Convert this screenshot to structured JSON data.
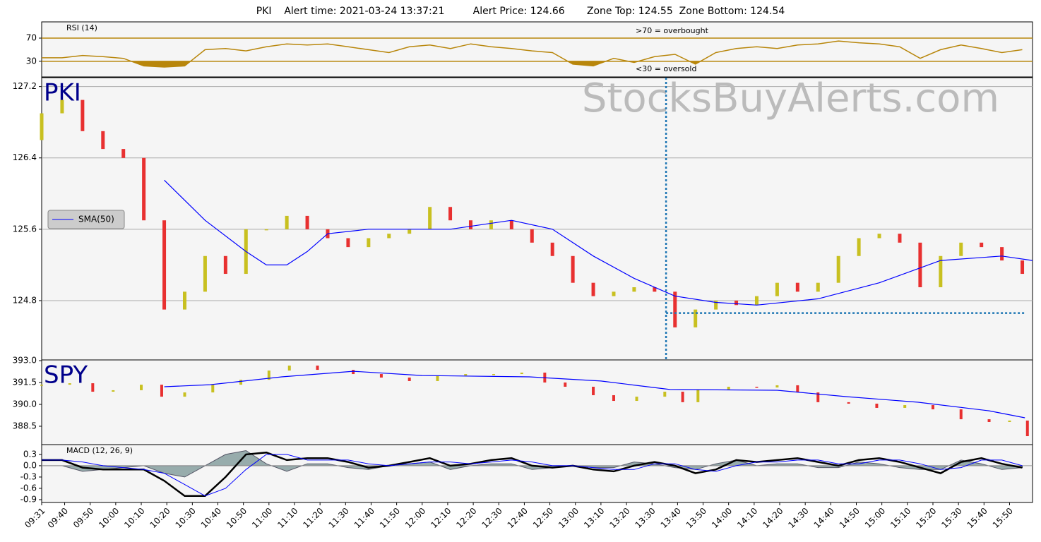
{
  "chart_data": [
    {
      "type": "line",
      "title": "PKI    Alert time: 2021-03-24 13:37:21         Alert Price: 124.66       Zone Top: 124.55  Zone Bottom: 124.54",
      "label": "RSI (14)",
      "annotations": [
        ">70 = overbought",
        "<30 = oversold"
      ],
      "ylim": [
        3,
        98
      ],
      "yticks": [
        30,
        70
      ],
      "level_color": "#b8860b",
      "x": [
        0,
        8,
        16,
        24,
        32,
        40,
        48,
        56,
        64,
        72,
        80,
        88,
        96,
        104,
        112,
        120,
        128,
        136,
        144,
        152,
        160,
        168,
        176,
        184,
        192,
        200,
        208,
        216,
        224,
        232,
        240,
        248,
        256,
        264,
        272,
        280,
        288,
        296,
        304,
        312,
        320,
        328,
        336,
        344,
        352,
        360,
        368,
        376,
        384
      ],
      "series": [
        {
          "color": "#b8860b",
          "values": [
            36,
            36,
            40,
            38,
            35,
            22,
            20,
            22,
            50,
            52,
            48,
            55,
            60,
            58,
            60,
            55,
            50,
            45,
            55,
            58,
            52,
            60,
            55,
            52,
            48,
            45,
            25,
            22,
            35,
            28,
            38,
            42,
            25,
            45,
            52,
            55,
            52,
            58,
            60,
            65,
            62,
            60,
            55,
            35,
            50,
            58,
            52,
            45,
            50
          ]
        }
      ]
    },
    {
      "type": "candlestick",
      "label": "PKI",
      "watermark": "StocksBuyAlerts.com",
      "ylim": [
        124.135,
        127.3
      ],
      "yticks": [
        124.8,
        125.6,
        126.4,
        127.2
      ],
      "grid": true,
      "up_color": "#c8c020",
      "down_color": "#e83030",
      "x": [
        0,
        8,
        16,
        24,
        32,
        40,
        48,
        56,
        64,
        72,
        80,
        88,
        96,
        104,
        112,
        120,
        128,
        136,
        144,
        152,
        160,
        168,
        176,
        184,
        192,
        200,
        208,
        216,
        224,
        232,
        240,
        248,
        256,
        264,
        272,
        280,
        288,
        296,
        304,
        312,
        320,
        328,
        336,
        344,
        352,
        360,
        368,
        376,
        384
      ],
      "open": [
        126.6,
        126.9,
        127.05,
        126.7,
        126.5,
        126.4,
        125.7,
        124.7,
        124.9,
        125.3,
        125.1,
        125.6,
        125.6,
        125.75,
        125.6,
        125.5,
        125.4,
        125.5,
        125.55,
        125.6,
        125.85,
        125.7,
        125.6,
        125.7,
        125.6,
        125.45,
        125.3,
        125.0,
        124.85,
        124.9,
        124.95,
        124.9,
        124.5,
        124.7,
        124.8,
        124.75,
        124.85,
        125.0,
        124.9,
        125.0,
        125.3,
        125.5,
        125.55,
        125.45,
        124.95,
        125.3,
        125.45,
        125.4,
        125.25
      ],
      "close": [
        126.9,
        127.05,
        126.7,
        126.5,
        126.4,
        125.7,
        124.7,
        124.9,
        125.3,
        125.1,
        125.6,
        125.6,
        125.75,
        125.6,
        125.5,
        125.4,
        125.5,
        125.55,
        125.6,
        125.85,
        125.7,
        125.6,
        125.7,
        125.6,
        125.45,
        125.3,
        125.0,
        124.85,
        124.9,
        124.95,
        124.9,
        124.5,
        124.7,
        124.8,
        124.75,
        124.85,
        125.0,
        124.9,
        125.0,
        125.3,
        125.5,
        125.55,
        125.45,
        124.95,
        125.3,
        125.45,
        125.4,
        125.25,
        125.1
      ],
      "sma": {
        "name": "SMA(50)",
        "color": "#0000ff",
        "x": [
          48,
          64,
          80,
          88,
          96,
          104,
          112,
          128,
          160,
          184,
          200,
          216,
          232,
          248,
          264,
          280,
          304,
          328,
          352,
          376,
          388
        ],
        "values": [
          126.15,
          125.7,
          125.35,
          125.2,
          125.2,
          125.35,
          125.55,
          125.6,
          125.6,
          125.7,
          125.6,
          125.3,
          125.05,
          124.85,
          124.78,
          124.75,
          124.82,
          125.0,
          125.25,
          125.3,
          125.25
        ]
      },
      "alert_x": 244.5,
      "zone": 124.66,
      "alert_color": "#1f77b4"
    },
    {
      "type": "candlestick",
      "label": "SPY",
      "ylim": [
        387.24,
        393.05
      ],
      "yticks": [
        {
          "value": 393,
          "label": "393.0"
        },
        391.5,
        {
          "value": 390,
          "label": "390.0"
        },
        388.5
      ],
      "up_color": "#c8c020",
      "down_color": "#e83030",
      "x": [
        0,
        11,
        20,
        28,
        39,
        47,
        56,
        67,
        78,
        89,
        97,
        108,
        122,
        133,
        144,
        155,
        166,
        177,
        188,
        197,
        205,
        216,
        224,
        233,
        244,
        251,
        257,
        269,
        280,
        288,
        296,
        304,
        316,
        327,
        338,
        349,
        360,
        371,
        379,
        386
      ],
      "open": [
        391.3,
        391.35,
        391.45,
        390.87,
        390.97,
        391.35,
        390.53,
        390.82,
        391.35,
        391.69,
        392.32,
        392.66,
        392.37,
        392.08,
        391.84,
        391.6,
        391.98,
        392.08,
        392.08,
        392.18,
        391.5,
        391.21,
        390.63,
        390.24,
        390.53,
        390.87,
        390.15,
        391.02,
        391.21,
        391.16,
        391.31,
        390.82,
        390.15,
        390.05,
        389.76,
        389.95,
        389.66,
        388.98,
        388.79,
        388.89
      ],
      "close": [
        391.35,
        391.45,
        390.87,
        390.97,
        391.35,
        390.53,
        390.82,
        391.35,
        391.69,
        392.32,
        392.66,
        392.37,
        392.08,
        391.84,
        391.6,
        391.98,
        392.08,
        392.08,
        392.18,
        391.5,
        391.21,
        390.63,
        390.24,
        390.53,
        390.87,
        390.15,
        391.02,
        391.21,
        391.16,
        391.31,
        390.82,
        390.15,
        390.05,
        389.76,
        389.95,
        389.66,
        388.98,
        388.79,
        388.89,
        387.82
      ],
      "sma": {
        "color": "#0000ff",
        "x": [
          48,
          66,
          94,
          122,
          149,
          191,
          219,
          246,
          288,
          315,
          343,
          371,
          385
        ],
        "values": [
          391.21,
          391.35,
          391.89,
          392.27,
          391.98,
          391.89,
          391.6,
          391.02,
          390.97,
          390.53,
          390.15,
          389.56,
          389.08
        ]
      }
    },
    {
      "type": "line",
      "label": "MACD (12, 26, 9)",
      "ylim": [
        -0.975,
        0.56
      ],
      "yticks": [
        0.3,
        {
          "value": 0,
          "label": "0.0"
        },
        -0.3,
        -0.6,
        -0.9
      ],
      "xlim": [
        0,
        388
      ],
      "xticks": [
        {
          "value": 0,
          "label": "09:31"
        },
        {
          "value": 9,
          "label": "09:40"
        },
        {
          "value": 19,
          "label": "09:50"
        },
        {
          "value": 29,
          "label": "10:00"
        },
        {
          "value": 39,
          "label": "10:10"
        },
        {
          "value": 49,
          "label": "10:20"
        },
        {
          "value": 59,
          "label": "10:30"
        },
        {
          "value": 69,
          "label": "10:40"
        },
        {
          "value": 79,
          "label": "10:50"
        },
        {
          "value": 89,
          "label": "11:00"
        },
        {
          "value": 99,
          "label": "11:10"
        },
        {
          "value": 109,
          "label": "11:20"
        },
        {
          "value": 119,
          "label": "11:30"
        },
        {
          "value": 129,
          "label": "11:40"
        },
        {
          "value": 139,
          "label": "11:50"
        },
        {
          "value": 149,
          "label": "12:00"
        },
        {
          "value": 159,
          "label": "12:10"
        },
        {
          "value": 169,
          "label": "12:20"
        },
        {
          "value": 179,
          "label": "12:30"
        },
        {
          "value": 189,
          "label": "12:40"
        },
        {
          "value": 199,
          "label": "12:50"
        },
        {
          "value": 209,
          "label": "13:00"
        },
        {
          "value": 219,
          "label": "13:10"
        },
        {
          "value": 229,
          "label": "13:20"
        },
        {
          "value": 239,
          "label": "13:30"
        },
        {
          "value": 249,
          "label": "13:40"
        },
        {
          "value": 259,
          "label": "13:50"
        },
        {
          "value": 269,
          "label": "14:00"
        },
        {
          "value": 279,
          "label": "14:10"
        },
        {
          "value": 289,
          "label": "14:20"
        },
        {
          "value": 299,
          "label": "14:30"
        },
        {
          "value": 309,
          "label": "14:40"
        },
        {
          "value": 319,
          "label": "14:50"
        },
        {
          "value": 329,
          "label": "15:00"
        },
        {
          "value": 339,
          "label": "15:10"
        },
        {
          "value": 349,
          "label": "15:20"
        },
        {
          "value": 359,
          "label": "15:30"
        },
        {
          "value": 369,
          "label": "15:40"
        },
        {
          "value": 379,
          "label": "15:50"
        }
      ],
      "x": [
        0,
        8,
        16,
        24,
        32,
        40,
        48,
        56,
        64,
        72,
        80,
        88,
        96,
        104,
        112,
        120,
        128,
        136,
        144,
        152,
        160,
        168,
        176,
        184,
        192,
        200,
        208,
        216,
        224,
        232,
        240,
        248,
        256,
        264,
        272,
        280,
        288,
        296,
        304,
        312,
        320,
        328,
        336,
        344,
        352,
        360,
        368,
        376,
        384
      ],
      "histogram": {
        "color": "#7f9a9a",
        "values": [
          0,
          0,
          -0.15,
          -0.1,
          -0.05,
          0,
          -0.2,
          -0.3,
          0,
          0.3,
          0.4,
          0.05,
          -0.15,
          0.05,
          0.05,
          -0.05,
          -0.1,
          0,
          0.05,
          0.1,
          -0.1,
          0,
          0.05,
          0.05,
          -0.1,
          -0.05,
          0,
          -0.05,
          -0.05,
          0.1,
          0.05,
          -0.05,
          -0.1,
          0.05,
          0.15,
          0,
          0.05,
          0.05,
          -0.05,
          -0.05,
          0.1,
          0.05,
          -0.05,
          -0.1,
          -0.1,
          0.15,
          0.05,
          -0.1,
          -0.05
        ]
      },
      "series": [
        {
          "color": "#000000",
          "width": 2.5,
          "values": [
            0.15,
            0.15,
            -0.05,
            -0.1,
            -0.1,
            -0.1,
            -0.4,
            -0.8,
            -0.8,
            -0.3,
            0.3,
            0.35,
            0.15,
            0.2,
            0.2,
            0.1,
            -0.05,
            0,
            0.1,
            0.2,
            0.0,
            0.05,
            0.15,
            0.2,
            0.0,
            -0.05,
            0.0,
            -0.1,
            -0.15,
            0.0,
            0.1,
            0.0,
            -0.2,
            -0.1,
            0.15,
            0.1,
            0.15,
            0.2,
            0.1,
            0.0,
            0.15,
            0.2,
            0.1,
            -0.05,
            -0.2,
            0.1,
            0.2,
            0.05,
            -0.05
          ]
        },
        {
          "color": "#0000ff",
          "width": 1,
          "values": [
            0.15,
            0.15,
            0.1,
            0.0,
            -0.05,
            -0.1,
            -0.2,
            -0.5,
            -0.8,
            -0.6,
            -0.1,
            0.3,
            0.3,
            0.15,
            0.15,
            0.15,
            0.05,
            0.0,
            0.05,
            0.1,
            0.1,
            0.05,
            0.1,
            0.15,
            0.1,
            0.0,
            0.0,
            -0.05,
            -0.1,
            -0.1,
            0.05,
            0.05,
            -0.1,
            -0.15,
            0.0,
            0.1,
            0.1,
            0.15,
            0.15,
            0.05,
            0.05,
            0.15,
            0.15,
            0.05,
            -0.1,
            -0.05,
            0.15,
            0.15,
            0.0
          ]
        }
      ]
    }
  ]
}
